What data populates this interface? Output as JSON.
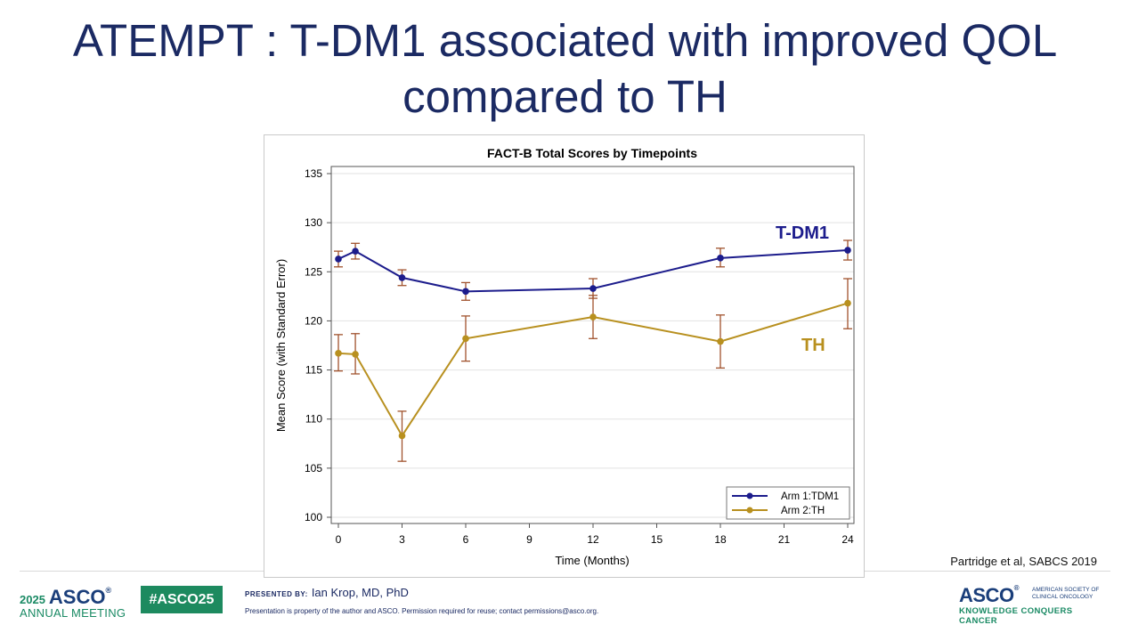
{
  "slide": {
    "title_line1": "ATEMPT : T-DM1 associated with improved QOL",
    "title_line2": "compared to TH",
    "citation": "Partridge et al, SABCS 2019"
  },
  "footer": {
    "meeting_year": "2025",
    "meeting_brand": "ASCO",
    "meeting_reg": "®",
    "meeting_subtitle": "ANNUAL MEETING",
    "hashtag": "#ASCO25",
    "presented_by_label": "PRESENTED BY:",
    "presenter_name": "Ian Krop, MD, PhD",
    "disclaimer": "Presentation is property of the author and ASCO. Permission required for reuse; contact permissions@asco.org.",
    "org_brand": "ASCO",
    "org_reg": "®",
    "org_name_line1": "AMERICAN SOCIETY OF",
    "org_name_line2": "CLINICAL ONCOLOGY",
    "org_tagline": "KNOWLEDGE CONQUERS CANCER"
  },
  "colors": {
    "title": "#1b2a63",
    "tdm1": "#1c1c8c",
    "th": "#b8901f",
    "error_bar": "#a0522d"
  },
  "chart_data": {
    "type": "line",
    "title": "FACT-B Total Scores by Timepoints",
    "xlabel": "Time (Months)",
    "ylabel": "Mean Score (with Standard Error)",
    "xlim": [
      0,
      24
    ],
    "ylim": [
      100,
      135
    ],
    "xticks": [
      0,
      3,
      6,
      9,
      12,
      15,
      18,
      21,
      24
    ],
    "yticks": [
      100,
      105,
      110,
      115,
      120,
      125,
      130,
      135
    ],
    "grid": "horizontal",
    "legend_position": "bottom-right",
    "annotations": [
      {
        "text": "T-DM1",
        "series": "Arm 1:TDM1"
      },
      {
        "text": "TH",
        "series": "Arm 2:TH"
      }
    ],
    "series": [
      {
        "name": "Arm 1:TDM1",
        "x": [
          0,
          0.8,
          3,
          6,
          12,
          18,
          24
        ],
        "y": [
          126.3,
          127.1,
          124.4,
          123.0,
          123.3,
          126.4,
          127.2
        ],
        "err_low": [
          125.5,
          126.3,
          123.6,
          122.1,
          122.3,
          125.5,
          126.2
        ],
        "err_high": [
          127.1,
          127.9,
          125.2,
          123.9,
          124.3,
          127.4,
          128.2
        ]
      },
      {
        "name": "Arm 2:TH",
        "x": [
          0,
          0.8,
          3,
          6,
          12,
          18,
          24
        ],
        "y": [
          116.7,
          116.6,
          108.3,
          118.2,
          120.4,
          117.9,
          121.8
        ],
        "err_low": [
          114.9,
          114.6,
          105.7,
          115.9,
          118.2,
          115.2,
          119.2
        ],
        "err_high": [
          118.6,
          118.7,
          110.8,
          120.5,
          122.6,
          120.6,
          124.3
        ]
      }
    ]
  }
}
